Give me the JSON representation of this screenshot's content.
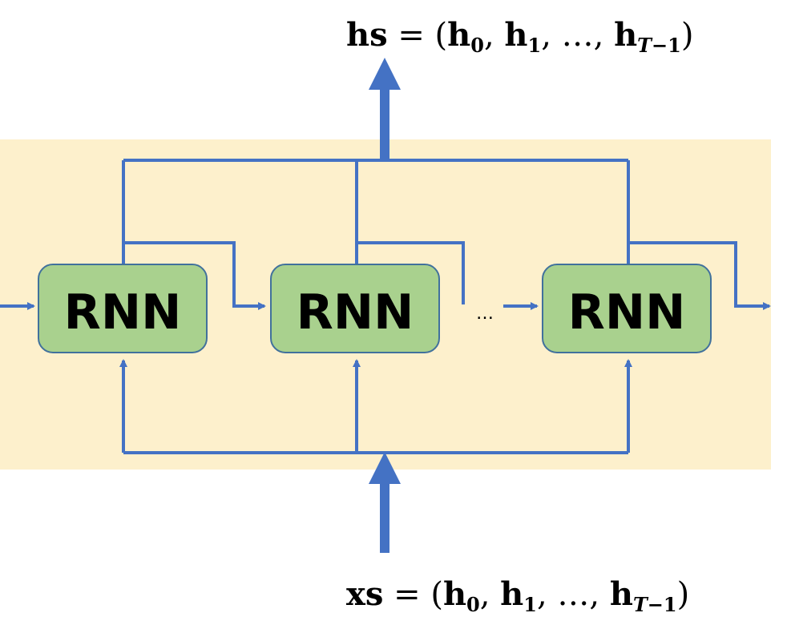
{
  "output_formula": {
    "lhs": "hs",
    "open": " = (",
    "h": "h",
    "sub0": "0",
    "sub1": "1",
    "ellipsis": "…",
    "subT": "T",
    "subMinus": "−1",
    "comma": ", ",
    "close": ")"
  },
  "input_formula": {
    "lhs": "xs",
    "open": " = (",
    "h": "h",
    "sub0": "0",
    "sub1": "1",
    "ellipsis": "…",
    "subT": "T",
    "subMinus": "−1",
    "comma": ", ",
    "close": ")"
  },
  "blocks": [
    {
      "label": "RNN"
    },
    {
      "label": "RNN"
    },
    {
      "label": "RNN"
    }
  ],
  "continuation": "…",
  "colors": {
    "background_panel": "#fdf0cc",
    "block_fill": "#a9d18e",
    "block_stroke": "#41719c",
    "arrow": "#4472c4"
  }
}
